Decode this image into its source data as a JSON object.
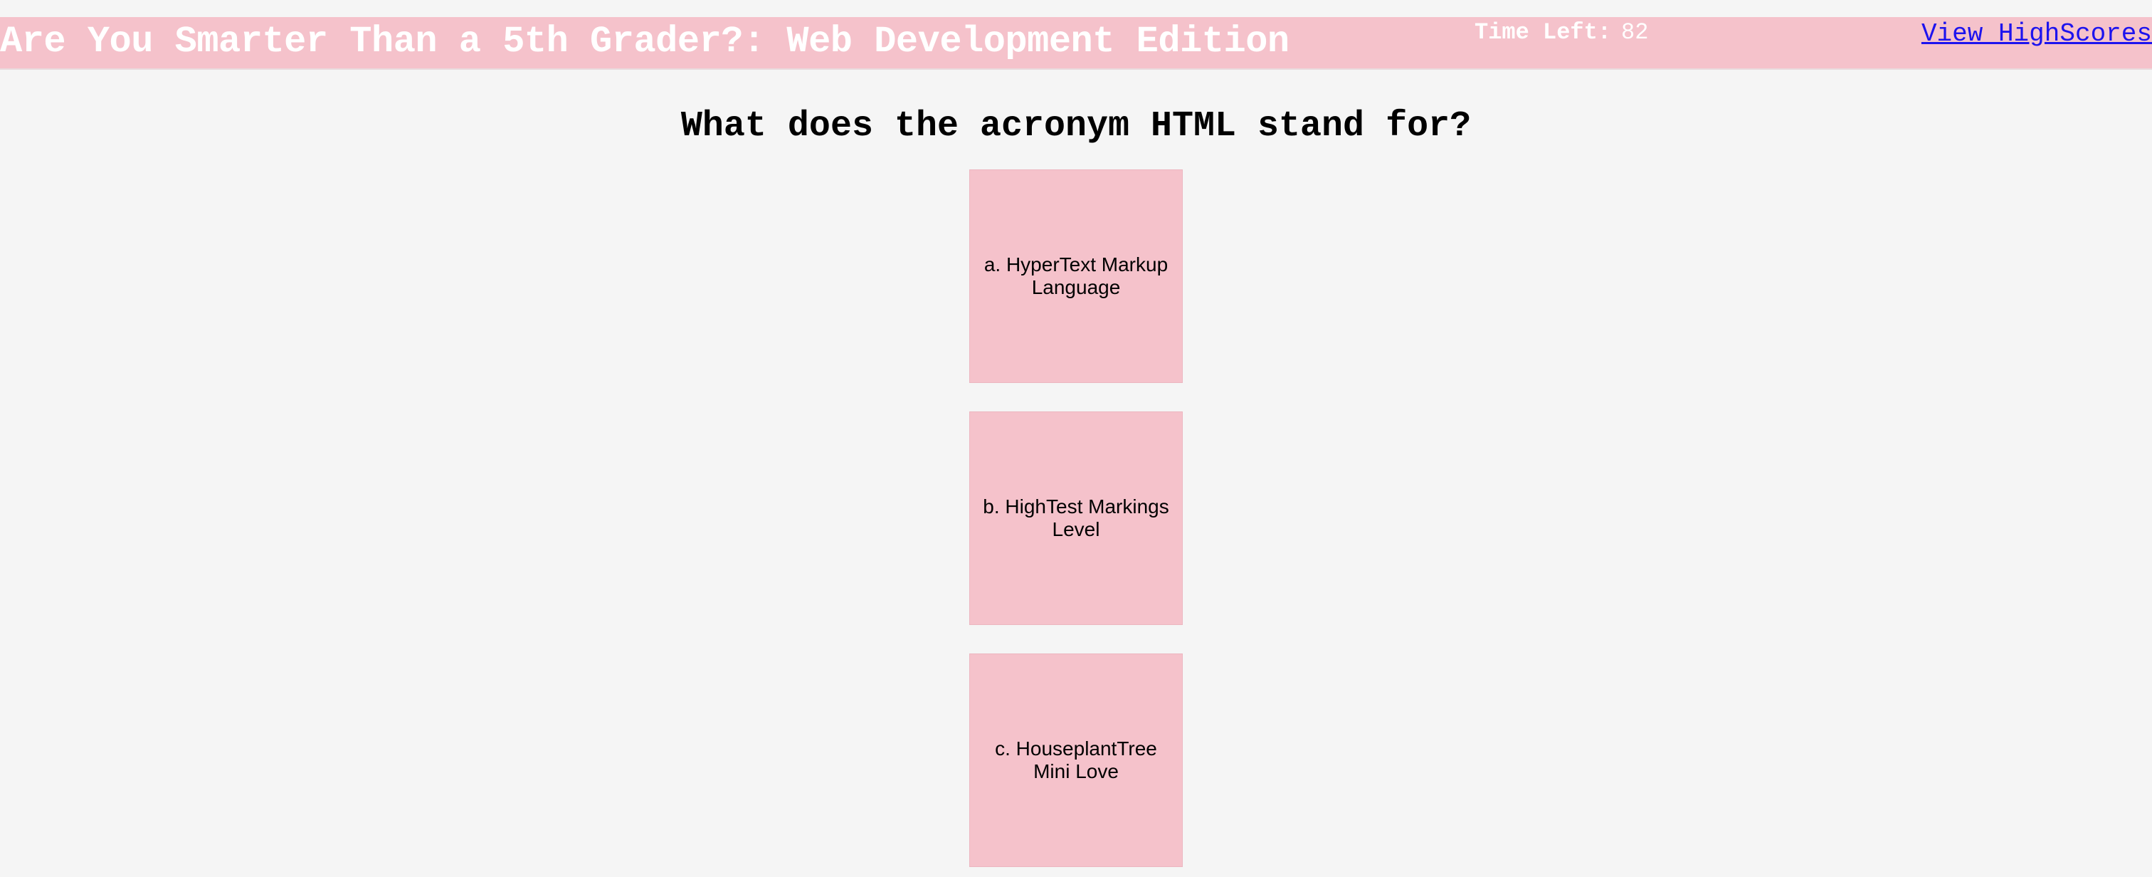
{
  "header": {
    "title": "Are You Smarter Than a 5th Grader?: Web Development Edition",
    "timer_label": "Time Left:",
    "timer_value": "82",
    "highscores_link": "View HighScores"
  },
  "quiz": {
    "question": "What does the acronym HTML stand for?",
    "answers": [
      {
        "label": "a. HyperText Markup Language"
      },
      {
        "label": "b. HighTest Markings Level"
      },
      {
        "label": "c. HouseplantTree Mini Love"
      }
    ]
  },
  "colors": {
    "background": "#f5f5f5",
    "accent_pink": "#f5c2cb",
    "link_blue": "#1d13ee"
  }
}
